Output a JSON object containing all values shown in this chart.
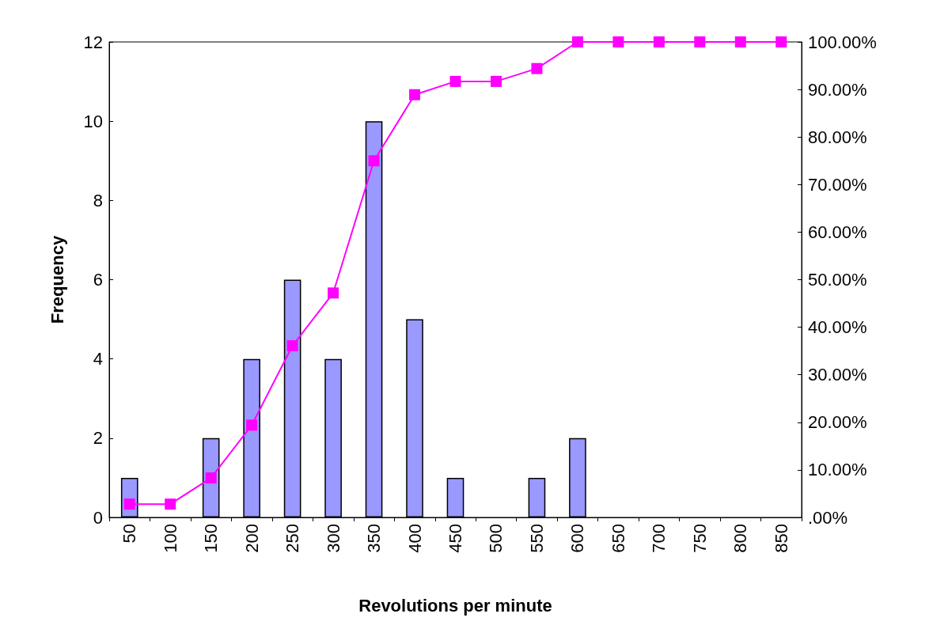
{
  "chart_data": {
    "type": "bar",
    "xlabel": "Revolutions per minute",
    "ylabel": "Frequency",
    "categories": [
      "50",
      "100",
      "150",
      "200",
      "250",
      "300",
      "350",
      "400",
      "450",
      "500",
      "550",
      "600",
      "650",
      "700",
      "750",
      "800",
      "850"
    ],
    "series": [
      {
        "color": "#9999ff",
        "values": [
          1,
          0,
          2,
          4,
          6,
          4,
          10,
          5,
          1,
          0,
          1,
          2,
          0,
          0,
          0,
          0,
          0
        ]
      },
      {
        "type": "line",
        "axis": "y2",
        "color": "#ff00ff",
        "values": [
          2.8,
          2.8,
          8.3,
          19.4,
          36.1,
          47.2,
          75,
          88.9,
          91.7,
          91.7,
          94.4,
          100,
          100,
          100,
          100,
          100,
          100
        ]
      }
    ],
    "ylim": [
      0,
      12
    ],
    "yticks": [
      0,
      2,
      4,
      6,
      8,
      10,
      12
    ],
    "y2lim": [
      0,
      100
    ],
    "y2ticks": [
      {
        "value": 0,
        "label": ".00%"
      },
      {
        "value": 10,
        "label": "10.00%"
      },
      {
        "value": 20,
        "label": "20.00%"
      },
      {
        "value": 30,
        "label": "30.00%"
      },
      {
        "value": 40,
        "label": "40.00%"
      },
      {
        "value": 50,
        "label": "50.00%"
      },
      {
        "value": 60,
        "label": "60.00%"
      },
      {
        "value": 70,
        "label": "70.00%"
      },
      {
        "value": 80,
        "label": "80.00%"
      },
      {
        "value": 90,
        "label": "90.00%"
      },
      {
        "value": 100,
        "label": "100.00%"
      }
    ],
    "marker": "square",
    "grid": false
  }
}
